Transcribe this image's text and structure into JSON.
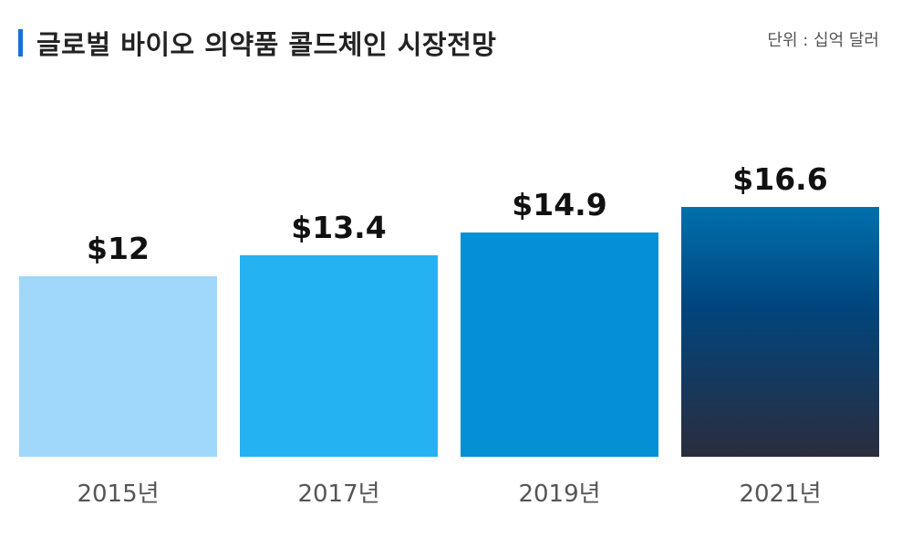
{
  "header": {
    "title": "글로벌 바이오 의약품 콜드체인 시장전망",
    "unit": "단위 : 십억 달러"
  },
  "colors": {
    "accent": "#1a6fd4",
    "bars": [
      "#9fd8fb",
      "#25b2f3",
      "#0590d6",
      "gradient"
    ],
    "gradient": [
      "#0070ad",
      "#00457e",
      "#2b2d3d"
    ]
  },
  "chart_data": {
    "type": "bar",
    "title": "글로벌 바이오 의약품 콜드체인 시장전망",
    "ylabel": "단위 : 십억 달러",
    "categories": [
      "2015년",
      "2017년",
      "2019년",
      "2021년"
    ],
    "values": [
      12,
      13.4,
      14.9,
      16.6
    ],
    "value_labels": [
      "$12",
      "$13.4",
      "$14.9",
      "$16.6"
    ],
    "ylim": [
      0,
      16.6
    ],
    "grid": false,
    "legend": "none"
  }
}
